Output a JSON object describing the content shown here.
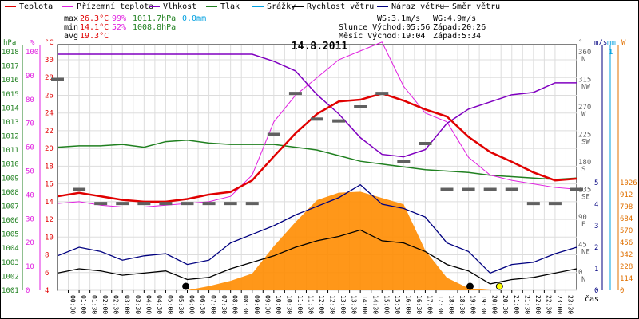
{
  "chart_data": {
    "type": "line",
    "title": "14.8.2011",
    "x_tick_labels": [
      "00:30",
      "01:00",
      "01:30",
      "02:00",
      "02:30",
      "03:00",
      "03:30",
      "04:00",
      "04:30",
      "05:00",
      "05:30",
      "06:00",
      "06:30",
      "07:00",
      "07:30",
      "08:00",
      "08:30",
      "09:00",
      "09:30",
      "10:00",
      "10:30",
      "11:00",
      "11:30",
      "12:00",
      "12:30",
      "13:00",
      "13:30",
      "14:00",
      "14:30",
      "15:00",
      "15:30",
      "16:00",
      "16:30",
      "17:00",
      "17:30",
      "18:00",
      "18:30",
      "19:00",
      "19:30",
      "20:00",
      "20:30",
      "21:00",
      "21:30",
      "22:00",
      "22:30",
      "23:00",
      "23:30"
    ],
    "x_axis_label": "čas",
    "legend": [
      {
        "name": "Teplota",
        "color": "#e00000"
      },
      {
        "name": "Přízemní teplota",
        "color": "#e020e0"
      },
      {
        "name": "Vlhkost",
        "color": "#8000c0"
      },
      {
        "name": "Tlak",
        "color": "#208020"
      },
      {
        "name": "Srážky",
        "color": "#00a0e0"
      },
      {
        "name": "Rychlost větru",
        "color": "#000000"
      },
      {
        "name": "Náraz větru",
        "color": "#000080"
      },
      {
        "name": "Směr větru",
        "color": "#606060"
      }
    ],
    "stats": {
      "max_label": "max",
      "max_temp": "26.3°C",
      "max_hum": "99%",
      "max_press": "1011.7hPa",
      "max_rain": "0.0mm",
      "min_label": "min",
      "min_temp": "14.1°C",
      "min_hum": "52%",
      "min_press": "1008.8hPa",
      "avg_label": "avg",
      "avg_temp": "19.3°C",
      "ws": "WS:3.1m/s",
      "wg": "WG:4.9m/s",
      "sun": "Slunce Východ:05:56",
      "sun_set": "Západ:20:26",
      "moon": "Měsíc  Východ:19:04",
      "moon_set": "Západ:5:34"
    },
    "axes": {
      "pressure": {
        "unit": "hPa",
        "ticks": [
          1001,
          1002,
          1003,
          1004,
          1005,
          1006,
          1007,
          1008,
          1009,
          1010,
          1011,
          1012,
          1013,
          1014,
          1015,
          1016,
          1017,
          1018
        ],
        "color": "#208020"
      },
      "humidity": {
        "unit": "%",
        "ticks": [
          0,
          10,
          20,
          30,
          40,
          50,
          60,
          70,
          80,
          90,
          100
        ],
        "color": "#e020e0"
      },
      "temperature": {
        "unit": "°C",
        "ticks": [
          4,
          6,
          8,
          10,
          12,
          14,
          16,
          18,
          20,
          22,
          24,
          26,
          28,
          30
        ],
        "color": "#e00000"
      },
      "direction": {
        "unit": "°",
        "ticks": [
          {
            "v": "0",
            "d": "N"
          },
          {
            "v": "45",
            "d": "NE"
          },
          {
            "v": "90",
            "d": "E"
          },
          {
            "v": "135",
            "d": "SE"
          },
          {
            "v": "180",
            "d": "S"
          },
          {
            "v": "225",
            "d": "SW"
          },
          {
            "v": "270",
            "d": "W"
          },
          {
            "v": "315",
            "d": "NW"
          },
          {
            "v": "360",
            "d": "N"
          }
        ],
        "color": "#606060"
      },
      "wind": {
        "unit": "m/s",
        "ticks": [
          0,
          1,
          2,
          3,
          4,
          5
        ],
        "color": "#000080"
      },
      "rain": {
        "unit": "mm",
        "ticks": [
          "1"
        ],
        "color": "#00a0e0"
      },
      "solar": {
        "unit": "W",
        "ticks": [
          0,
          114,
          228,
          342,
          456,
          570,
          684,
          798,
          912,
          1026
        ],
        "color": "#e07000"
      }
    },
    "series": [
      {
        "name": "Teplota",
        "x": [
          0,
          1,
          2,
          3,
          4,
          5,
          6,
          7,
          8,
          9,
          10,
          11,
          12,
          13,
          14,
          15,
          16,
          17,
          18,
          19,
          20,
          21,
          22,
          23,
          24
        ],
        "values": [
          14.6,
          15.0,
          14.6,
          14.2,
          14.0,
          14.0,
          14.3,
          14.8,
          15.1,
          16.4,
          19.1,
          21.7,
          23.9,
          25.3,
          25.5,
          26.2,
          25.4,
          24.4,
          23.6,
          21.3,
          19.6,
          18.5,
          17.3,
          16.4,
          16.6
        ]
      },
      {
        "name": "Přízemní teplota",
        "x": [
          0,
          1,
          2,
          3,
          4,
          5,
          6,
          7,
          8,
          9,
          10,
          11,
          12,
          13,
          14,
          15,
          16,
          17,
          18,
          19,
          20,
          21,
          22,
          23,
          24
        ],
        "values": [
          13.8,
          14.0,
          13.6,
          13.4,
          13.4,
          13.6,
          13.8,
          14.0,
          14.6,
          17.0,
          23.0,
          26.0,
          28.0,
          30.0,
          31.0,
          32.0,
          27.0,
          24.0,
          23.0,
          19.0,
          17.0,
          16.4,
          16.0,
          15.6,
          15.4
        ]
      },
      {
        "name": "Vlhkost",
        "x": [
          0,
          1,
          2,
          3,
          4,
          5,
          6,
          7,
          8,
          9,
          10,
          11,
          12,
          13,
          14,
          15,
          16,
          17,
          18,
          19,
          20,
          21,
          22,
          23,
          24
        ],
        "values": [
          99,
          99,
          99,
          99,
          99,
          99,
          99,
          99,
          99,
          99,
          96,
          92,
          82,
          74,
          64,
          57,
          56,
          59,
          70,
          76,
          79,
          82,
          83,
          87,
          87
        ]
      },
      {
        "name": "Tlak",
        "x": [
          0,
          1,
          2,
          3,
          4,
          5,
          6,
          7,
          8,
          9,
          10,
          11,
          12,
          13,
          14,
          15,
          16,
          17,
          18,
          19,
          20,
          21,
          22,
          23,
          24
        ],
        "values": [
          1011.2,
          1011.3,
          1011.3,
          1011.4,
          1011.2,
          1011.6,
          1011.7,
          1011.5,
          1011.4,
          1011.4,
          1011.4,
          1011.2,
          1011.0,
          1010.6,
          1010.2,
          1010.0,
          1009.8,
          1009.6,
          1009.5,
          1009.4,
          1009.2,
          1009.1,
          1009.0,
          1008.9,
          1009.0
        ]
      },
      {
        "name": "Rychlost větru",
        "x": [
          0,
          1,
          2,
          3,
          4,
          5,
          6,
          7,
          8,
          9,
          10,
          11,
          12,
          13,
          14,
          15,
          16,
          17,
          18,
          19,
          20,
          21,
          22,
          23,
          24
        ],
        "values": [
          0.8,
          1.0,
          0.9,
          0.7,
          0.8,
          0.9,
          0.5,
          0.6,
          1.0,
          1.3,
          1.6,
          2.0,
          2.3,
          2.5,
          2.8,
          2.3,
          2.2,
          1.8,
          1.2,
          0.9,
          0.3,
          0.5,
          0.6,
          0.8,
          1.0
        ]
      },
      {
        "name": "Náraz větru",
        "x": [
          0,
          1,
          2,
          3,
          4,
          5,
          6,
          7,
          8,
          9,
          10,
          11,
          12,
          13,
          14,
          15,
          16,
          17,
          18,
          19,
          20,
          21,
          22,
          23,
          24
        ],
        "values": [
          1.6,
          2.0,
          1.8,
          1.4,
          1.6,
          1.7,
          1.2,
          1.4,
          2.2,
          2.6,
          3.0,
          3.5,
          3.9,
          4.3,
          4.9,
          4.0,
          3.8,
          3.4,
          2.2,
          1.8,
          0.8,
          1.2,
          1.3,
          1.7,
          2.0
        ]
      },
      {
        "name": "Směr větru",
        "x": [
          0,
          1,
          2,
          3,
          4,
          5,
          6,
          7,
          8,
          9,
          10,
          11,
          12,
          13,
          14,
          15,
          16,
          17,
          18,
          19,
          20,
          21,
          22,
          23,
          24
        ],
        "values": [
          315,
          135,
          112,
          112,
          112,
          112,
          112,
          112,
          112,
          112,
          225,
          292,
          250,
          247,
          270,
          292,
          180,
          210,
          135,
          135,
          135,
          135,
          112,
          112,
          135
        ]
      },
      {
        "name": "Sluneční záření",
        "x": [
          6,
          7,
          8,
          9,
          10,
          11,
          12,
          13,
          14,
          15,
          16,
          17,
          18,
          19,
          20
        ],
        "values": [
          0,
          40,
          90,
          160,
          420,
          650,
          860,
          930,
          940,
          880,
          820,
          380,
          120,
          20,
          0
        ]
      }
    ],
    "markers": [
      {
        "time": 5.93,
        "color": "#000000"
      },
      {
        "time": 19.07,
        "color": "#000000"
      },
      {
        "time": 20.43,
        "color": "#ffff00"
      }
    ]
  }
}
